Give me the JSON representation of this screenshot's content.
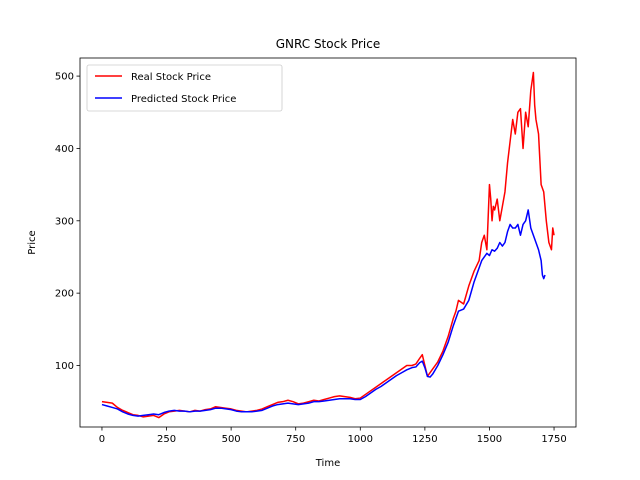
{
  "chart_data": {
    "type": "line",
    "title": "GNRC Stock Price",
    "xlabel": "Time",
    "ylabel": "Price",
    "xlim": [
      -85,
      1835
    ],
    "ylim": [
      15,
      525
    ],
    "xticks": [
      0,
      250,
      500,
      750,
      1000,
      1250,
      1500,
      1750
    ],
    "yticks": [
      100,
      200,
      300,
      400,
      500
    ],
    "grid": false,
    "legend_position": "top-left",
    "series": [
      {
        "name": "Real Stock Price",
        "color": "#ff0000",
        "x": [
          0,
          20,
          40,
          60,
          80,
          100,
          120,
          140,
          160,
          180,
          200,
          220,
          240,
          260,
          280,
          300,
          320,
          340,
          360,
          380,
          400,
          420,
          440,
          460,
          480,
          500,
          520,
          540,
          560,
          580,
          600,
          620,
          640,
          660,
          680,
          700,
          720,
          740,
          760,
          780,
          800,
          820,
          840,
          860,
          880,
          900,
          920,
          940,
          960,
          980,
          1000,
          1020,
          1040,
          1060,
          1080,
          1100,
          1120,
          1140,
          1160,
          1180,
          1200,
          1215,
          1230,
          1240,
          1250,
          1260,
          1270,
          1280,
          1300,
          1320,
          1340,
          1360,
          1370,
          1380,
          1400,
          1420,
          1440,
          1460,
          1470,
          1480,
          1490,
          1500,
          1505,
          1510,
          1515,
          1520,
          1530,
          1540,
          1550,
          1560,
          1570,
          1580,
          1590,
          1600,
          1610,
          1620,
          1630,
          1640,
          1650,
          1660,
          1670,
          1675,
          1680,
          1690,
          1700,
          1710,
          1720,
          1730,
          1740,
          1745,
          1750
        ],
        "y": [
          50,
          49,
          48,
          42,
          38,
          35,
          32,
          31,
          29,
          30,
          31,
          28,
          33,
          36,
          37,
          38,
          37,
          36,
          38,
          37,
          39,
          40,
          43,
          42,
          41,
          40,
          38,
          37,
          36,
          37,
          38,
          40,
          43,
          46,
          49,
          50,
          52,
          50,
          47,
          48,
          50,
          52,
          51,
          53,
          55,
          57,
          58,
          57,
          56,
          54,
          55,
          60,
          65,
          70,
          75,
          80,
          85,
          90,
          95,
          100,
          100,
          102,
          110,
          115,
          100,
          85,
          90,
          95,
          105,
          120,
          140,
          165,
          175,
          190,
          185,
          210,
          230,
          245,
          270,
          280,
          260,
          350,
          330,
          300,
          320,
          315,
          330,
          300,
          320,
          340,
          380,
          410,
          440,
          420,
          450,
          455,
          400,
          450,
          430,
          480,
          505,
          460,
          440,
          420,
          350,
          340,
          300,
          270,
          260,
          290,
          280
        ]
      },
      {
        "name": "Predicted Stock Price",
        "color": "#0000ff",
        "x": [
          0,
          20,
          40,
          60,
          80,
          100,
          120,
          140,
          160,
          180,
          200,
          220,
          240,
          260,
          280,
          300,
          320,
          340,
          360,
          380,
          400,
          420,
          440,
          460,
          480,
          500,
          520,
          540,
          560,
          580,
          600,
          620,
          640,
          660,
          680,
          700,
          720,
          740,
          760,
          780,
          800,
          820,
          840,
          860,
          880,
          900,
          920,
          940,
          960,
          980,
          1000,
          1020,
          1040,
          1060,
          1080,
          1100,
          1120,
          1140,
          1160,
          1180,
          1200,
          1215,
          1230,
          1240,
          1250,
          1260,
          1270,
          1280,
          1300,
          1320,
          1340,
          1360,
          1370,
          1380,
          1400,
          1420,
          1440,
          1460,
          1470,
          1480,
          1490,
          1500,
          1510,
          1520,
          1530,
          1540,
          1550,
          1560,
          1570,
          1580,
          1590,
          1600,
          1610,
          1620,
          1630,
          1640,
          1650,
          1660,
          1670,
          1680,
          1690,
          1700,
          1705,
          1710,
          1715
        ],
        "y": [
          46,
          44,
          42,
          40,
          36,
          33,
          31,
          30,
          31,
          32,
          33,
          32,
          35,
          37,
          38,
          37,
          37,
          36,
          37,
          37,
          38,
          39,
          41,
          41,
          40,
          39,
          37,
          36,
          36,
          36,
          37,
          38,
          41,
          44,
          46,
          47,
          48,
          47,
          46,
          47,
          48,
          50,
          50,
          51,
          52,
          53,
          54,
          54,
          54,
          53,
          53,
          57,
          62,
          67,
          71,
          76,
          81,
          86,
          90,
          94,
          97,
          98,
          104,
          106,
          97,
          85,
          84,
          88,
          100,
          115,
          132,
          155,
          165,
          175,
          178,
          190,
          215,
          235,
          245,
          250,
          255,
          252,
          260,
          258,
          262,
          270,
          265,
          270,
          285,
          295,
          290,
          290,
          295,
          280,
          295,
          300,
          315,
          290,
          280,
          270,
          260,
          245,
          225,
          220,
          225
        ]
      }
    ]
  }
}
